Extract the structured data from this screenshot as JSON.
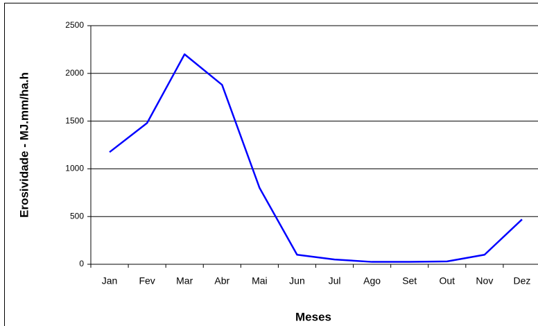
{
  "chart_data": {
    "type": "line",
    "xlabel": "Meses",
    "ylabel": "Erosividade - MJ.mm/ha.h",
    "categories": [
      "Jan",
      "Fev",
      "Mar",
      "Abr",
      "Mai",
      "Jun",
      "Jul",
      "Ago",
      "Set",
      "Out",
      "Nov",
      "Dez"
    ],
    "series": [
      {
        "name": "Erosividade",
        "color": "#0000ff",
        "values": [
          1175,
          1480,
          2200,
          1880,
          800,
          100,
          50,
          25,
          25,
          30,
          100,
          470
        ]
      }
    ],
    "ylim": [
      0,
      2500
    ],
    "yticks": [
      0,
      500,
      1000,
      1500,
      2000,
      2500
    ],
    "grid": true
  }
}
